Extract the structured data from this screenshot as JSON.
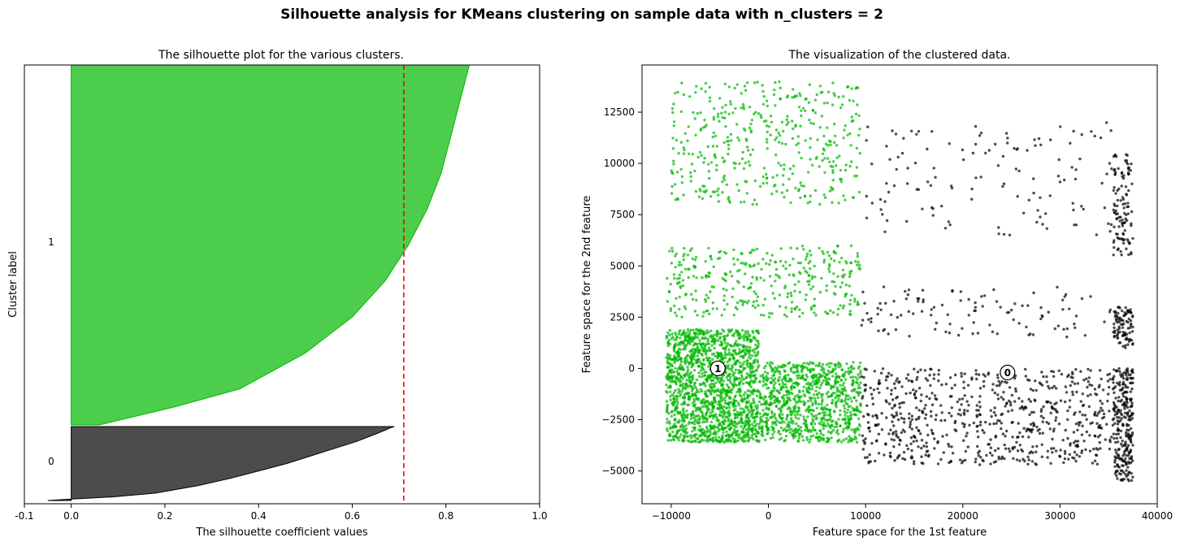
{
  "suptitle": "Silhouette analysis for KMeans clustering on sample data with n_clusters = 2",
  "colors": {
    "cluster_1": "#00b800",
    "cluster_0": "#000000",
    "avg_line": "#ff0000"
  },
  "chart_data": [
    {
      "type": "area",
      "title": "The silhouette plot for the various clusters.",
      "xlabel": "The silhouette coefficient values",
      "ylabel": "Cluster label",
      "xlim": [
        -0.1,
        1.0
      ],
      "xticks": [
        "-0.1",
        "0.0",
        "0.2",
        "0.4",
        "0.6",
        "0.8",
        "1.0"
      ],
      "xtick_values": [
        -0.1,
        0.0,
        0.2,
        0.4,
        0.6,
        0.8,
        1.0
      ],
      "cluster_labels": [
        "1",
        "0"
      ],
      "average_silhouette_score": 0.71,
      "series": [
        {
          "label": "0",
          "profile_fraction": [
            0.0,
            0.02,
            0.05,
            0.1,
            0.2,
            0.3,
            0.4,
            0.5,
            0.6,
            0.7,
            0.8,
            0.85,
            0.9,
            0.95,
            0.98,
            1.0
          ],
          "profile_value": [
            -0.05,
            0.0,
            0.09,
            0.18,
            0.27,
            0.34,
            0.4,
            0.46,
            0.51,
            0.56,
            0.61,
            0.63,
            0.65,
            0.67,
            0.68,
            0.69
          ]
        },
        {
          "label": "1",
          "profile_fraction": [
            0.0,
            0.05,
            0.1,
            0.2,
            0.3,
            0.4,
            0.5,
            0.6,
            0.7,
            0.75,
            0.8,
            0.85,
            0.9,
            0.95,
            1.0
          ],
          "profile_value": [
            0.06,
            0.22,
            0.36,
            0.5,
            0.6,
            0.67,
            0.72,
            0.76,
            0.79,
            0.8,
            0.81,
            0.82,
            0.83,
            0.84,
            0.85
          ]
        }
      ]
    },
    {
      "type": "scatter",
      "title": "The visualization of the clustered data.",
      "xlabel": "Feature space for the 1st feature",
      "ylabel": "Feature space for the 2nd feature",
      "xlim": [
        -13000,
        40000
      ],
      "ylim": [
        -6600,
        14800
      ],
      "xticks": [
        "−10000",
        "0",
        "10000",
        "20000",
        "30000",
        "40000"
      ],
      "xtick_values": [
        -10000,
        0,
        10000,
        20000,
        30000,
        40000
      ],
      "yticks": [
        "−5000",
        "−2500",
        "0",
        "2500",
        "5000",
        "7500",
        "10000",
        "12500"
      ],
      "ytick_values": [
        -5000,
        -2500,
        0,
        2500,
        5000,
        7500,
        10000,
        12500
      ],
      "centers": [
        {
          "label": "1",
          "x": -5200,
          "y": 0
        },
        {
          "label": "0",
          "x": 24600,
          "y": -200
        }
      ],
      "series": [
        {
          "name": "1",
          "groups": [
            {
              "x": [
                -10500,
                -1000
              ],
              "y": [
                -3600,
                1900
              ],
              "n": 1600
            },
            {
              "x": [
                -1000,
                9500
              ],
              "y": [
                -3600,
                300
              ],
              "n": 900
            },
            {
              "x": [
                -10500,
                9500
              ],
              "y": [
                2500,
                6000
              ],
              "n": 350
            },
            {
              "x": [
                -10000,
                9500
              ],
              "y": [
                8000,
                14000
              ],
              "n": 420
            }
          ]
        },
        {
          "name": "0",
          "groups": [
            {
              "x": [
                9500,
                35500
              ],
              "y": [
                -4700,
                0
              ],
              "n": 700
            },
            {
              "x": [
                35500,
                37500
              ],
              "y": [
                -5500,
                0
              ],
              "n": 260
            },
            {
              "x": [
                9500,
                35500
              ],
              "y": [
                1500,
                4000
              ],
              "n": 110
            },
            {
              "x": [
                35500,
                37500
              ],
              "y": [
                1000,
                3000
              ],
              "n": 90
            },
            {
              "x": [
                9500,
                35500
              ],
              "y": [
                6500,
                12000
              ],
              "n": 130
            },
            {
              "x": [
                35500,
                37500
              ],
              "y": [
                5500,
                10500
              ],
              "n": 110
            }
          ]
        }
      ]
    }
  ]
}
